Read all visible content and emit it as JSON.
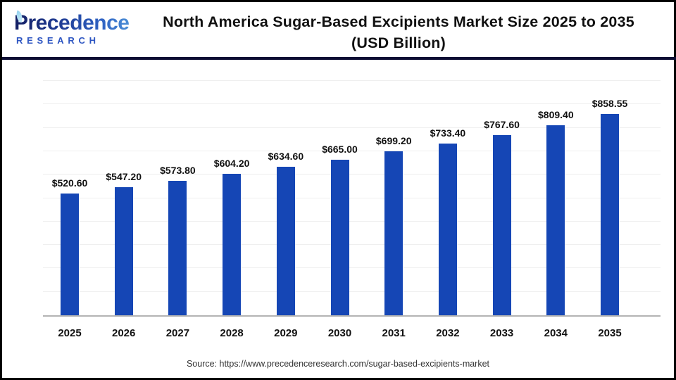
{
  "logo": {
    "line1": "Precedence",
    "line2": "RESEARCH"
  },
  "header": {
    "title_line1": "North America Sugar-Based Excipients Market Size 2025 to 2035",
    "title_line2": "(USD Billion)"
  },
  "footer": {
    "source": "Source: https://www.precedenceresearch.com/sugar-based-excipients-market"
  },
  "colors": {
    "bar": "#1546b5",
    "divider": "#0d0d33",
    "gridline": "#efefef",
    "baseline": "#b3b3b3",
    "title_text": "#111111",
    "logo_dark": "#141f63",
    "logo_light": "#4f93d8",
    "outer_border": "#000000"
  },
  "chart_data": {
    "type": "bar",
    "title": "North America Sugar-Based Excipients Market Size 2025 to 2035 (USD Billion)",
    "categories": [
      "2025",
      "2026",
      "2027",
      "2028",
      "2029",
      "2030",
      "2031",
      "2032",
      "2033",
      "2034",
      "2035"
    ],
    "values": [
      520.6,
      547.2,
      573.8,
      604.2,
      634.6,
      665.0,
      699.2,
      733.4,
      767.6,
      809.4,
      858.55
    ],
    "labels": [
      "$520.60",
      "$547.20",
      "$573.80",
      "$604.20",
      "$634.60",
      "$665.00",
      "$699.20",
      "$733.40",
      "$767.60",
      "$809.40",
      "$858.55"
    ],
    "xlabel": "",
    "ylabel": "",
    "ylim": [
      0,
      1000
    ],
    "gridline_step": 100,
    "grid": "horizontal",
    "legend": "none",
    "bar_color": "#1546b5"
  }
}
